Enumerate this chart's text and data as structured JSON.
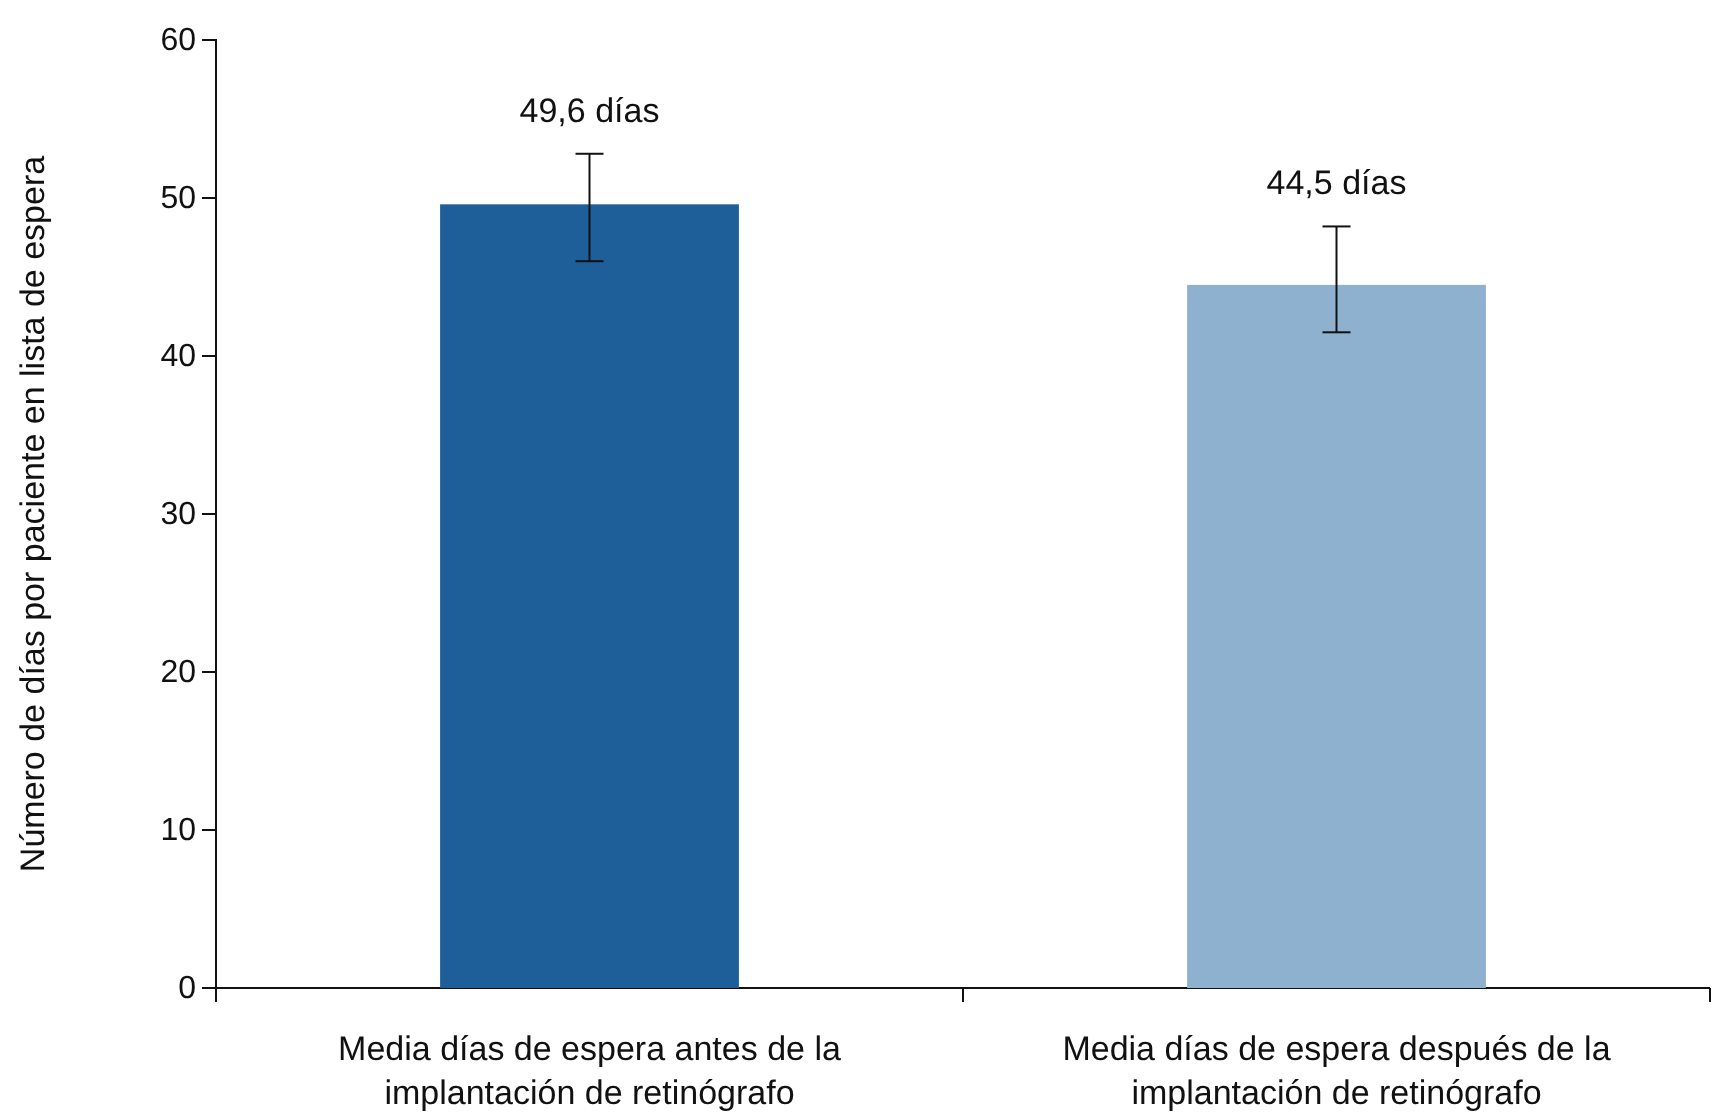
{
  "chart_data": {
    "type": "bar",
    "ylabel": "Número de días por paciente en lista de espera",
    "categories": [
      "Media días de espera antes de la implantación de retinógrafo",
      "Media días de espera después de la implantación de retinógrafo"
    ],
    "values": [
      49.6,
      44.5
    ],
    "colors": [
      "#1f5f99",
      "#8fb1d0"
    ],
    "errors": [
      [
        46,
        52.8
      ],
      [
        41.5,
        48.2
      ]
    ],
    "value_labels": [
      "49,6 días",
      "44,5 días"
    ],
    "ylim": [
      0,
      60
    ],
    "yticks": [
      0,
      10,
      20,
      30,
      40,
      50,
      60
    ],
    "grid": false
  }
}
